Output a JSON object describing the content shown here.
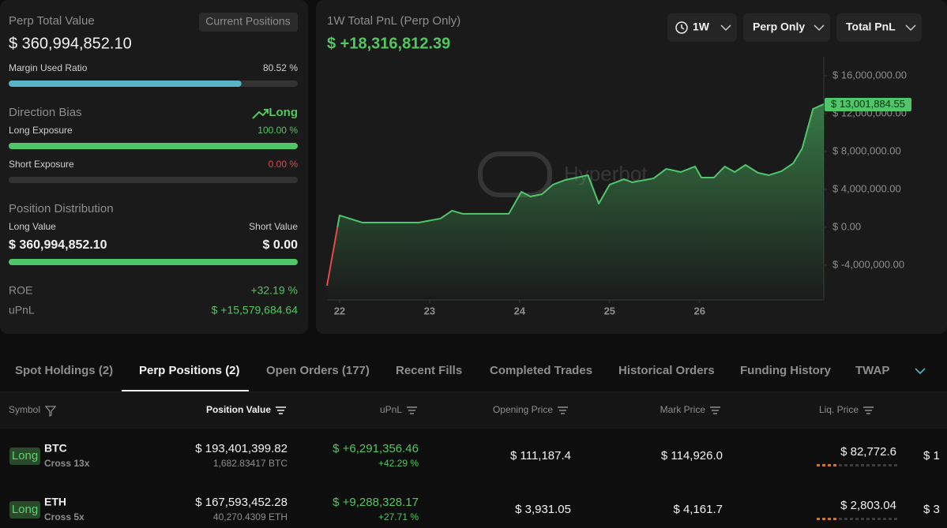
{
  "summary": {
    "title": "Perp Total Value",
    "button": "Current Positions",
    "total_value": "$ 360,994,852.10",
    "bars": [
      {
        "name": "Margin Used Ratio",
        "value": 80.52,
        "value_label": "80.52 %",
        "color": "#5ab4c8"
      },
      {
        "name": "Long Exposure",
        "value": 100.0,
        "value_label": "100.00 %",
        "color": "#4fc66a"
      },
      {
        "name": "Short Exposure",
        "value": 0.0,
        "value_label": "0.00 %",
        "color": "#e5484d"
      }
    ],
    "bias_label": "Direction Bias",
    "bias": "Long",
    "distribution_label": "Position Distribution",
    "long_value_label": "Long Value",
    "short_value_label": "Short Value",
    "long_value": "$ 360,994,852.10",
    "short_value": "$ 0.00",
    "roe_label": "ROE",
    "roe": "+32.19 %",
    "upnl_label": "uPnL",
    "upnl": "$ +15,579,684.64"
  },
  "controls": [
    "1W",
    "Perp Only",
    "Total PnL"
  ],
  "watermark": "Hyperbot",
  "chart_data": {
    "type": "line",
    "title": "1W Total PnL (Perp Only)",
    "subtitle": "$ +18,316,812.39",
    "color": "#4fc66a",
    "negative_color": "#e5484d",
    "grid": false,
    "x": [
      21.86,
      22.0,
      22.25,
      22.88,
      23.12,
      23.25,
      23.37,
      23.88,
      24.02,
      24.12,
      24.25,
      24.37,
      24.51,
      24.76,
      24.88,
      25.0,
      25.16,
      25.25,
      25.49,
      25.63,
      25.79,
      25.95,
      26.02,
      26.16,
      26.28,
      26.39,
      26.51,
      26.65,
      26.77,
      26.91,
      27.04,
      27.14,
      27.26,
      27.38
    ],
    "values": [
      -6170000,
      1250000,
      500000,
      500000,
      920000,
      1750000,
      1420000,
      1420000,
      3750000,
      3250000,
      3500000,
      4500000,
      5000000,
      5500000,
      2500000,
      4500000,
      5080000,
      4750000,
      5170000,
      6170000,
      5830000,
      6420000,
      5250000,
      5250000,
      6420000,
      5830000,
      6580000,
      5750000,
      5500000,
      5920000,
      6750000,
      8330000,
      12500000,
      13001884.55
    ],
    "xlim": [
      21.86,
      27.38
    ],
    "xticks": [
      22,
      23,
      24,
      25,
      26
    ],
    "ylim": [
      -7670000,
      18000000
    ],
    "yticks": [
      {
        "value": 16000000,
        "label": "$ 16,000,000.00"
      },
      {
        "value": 12000000,
        "label": "$ 12,000,000.00"
      },
      {
        "value": 8000000,
        "label": "$ 8,000,000.00"
      },
      {
        "value": 4000000,
        "label": "$ 4,000,000.00"
      },
      {
        "value": 0,
        "label": "$ 0.00"
      },
      {
        "value": -4000000,
        "label": "$ -4,000,000.00"
      }
    ],
    "annotations": [
      {
        "text": "$ 13,001,884.55",
        "value": 13001884.55
      }
    ]
  },
  "tabs": [
    "Spot Holdings (2)",
    "Perp Positions (2)",
    "Open Orders (177)",
    "Recent Fills",
    "Completed Trades",
    "Historical Orders",
    "Funding History",
    "TWAP"
  ],
  "active_tab": 1,
  "table": {
    "columns": [
      "Symbol",
      "Position Value",
      "uPnL",
      "Opening Price",
      "Mark Price",
      "Liq. Price"
    ],
    "rows": [
      {
        "side": "Long",
        "symbol": "BTC",
        "margin": "Cross 13x",
        "position_value": "$ 193,401,399.82",
        "size": "1,682.83417 BTC",
        "upnl": "$ +6,291,356.46",
        "upnl_pct": "+42.29 %",
        "opening_price": "$ 111,187.4",
        "mark_price": "$ 114,926.0",
        "liq_price": "$ 82,772.6",
        "overflow": "$ 1"
      },
      {
        "side": "Long",
        "symbol": "ETH",
        "margin": "Cross 5x",
        "position_value": "$ 167,593,452.28",
        "size": "40,270.4309 ETH",
        "upnl": "$ +9,288,328.17",
        "upnl_pct": "+27.71 %",
        "opening_price": "$ 3,931.05",
        "mark_price": "$ 4,161.7",
        "liq_price": "$ 2,803.04",
        "overflow": "$ 3"
      }
    ]
  }
}
